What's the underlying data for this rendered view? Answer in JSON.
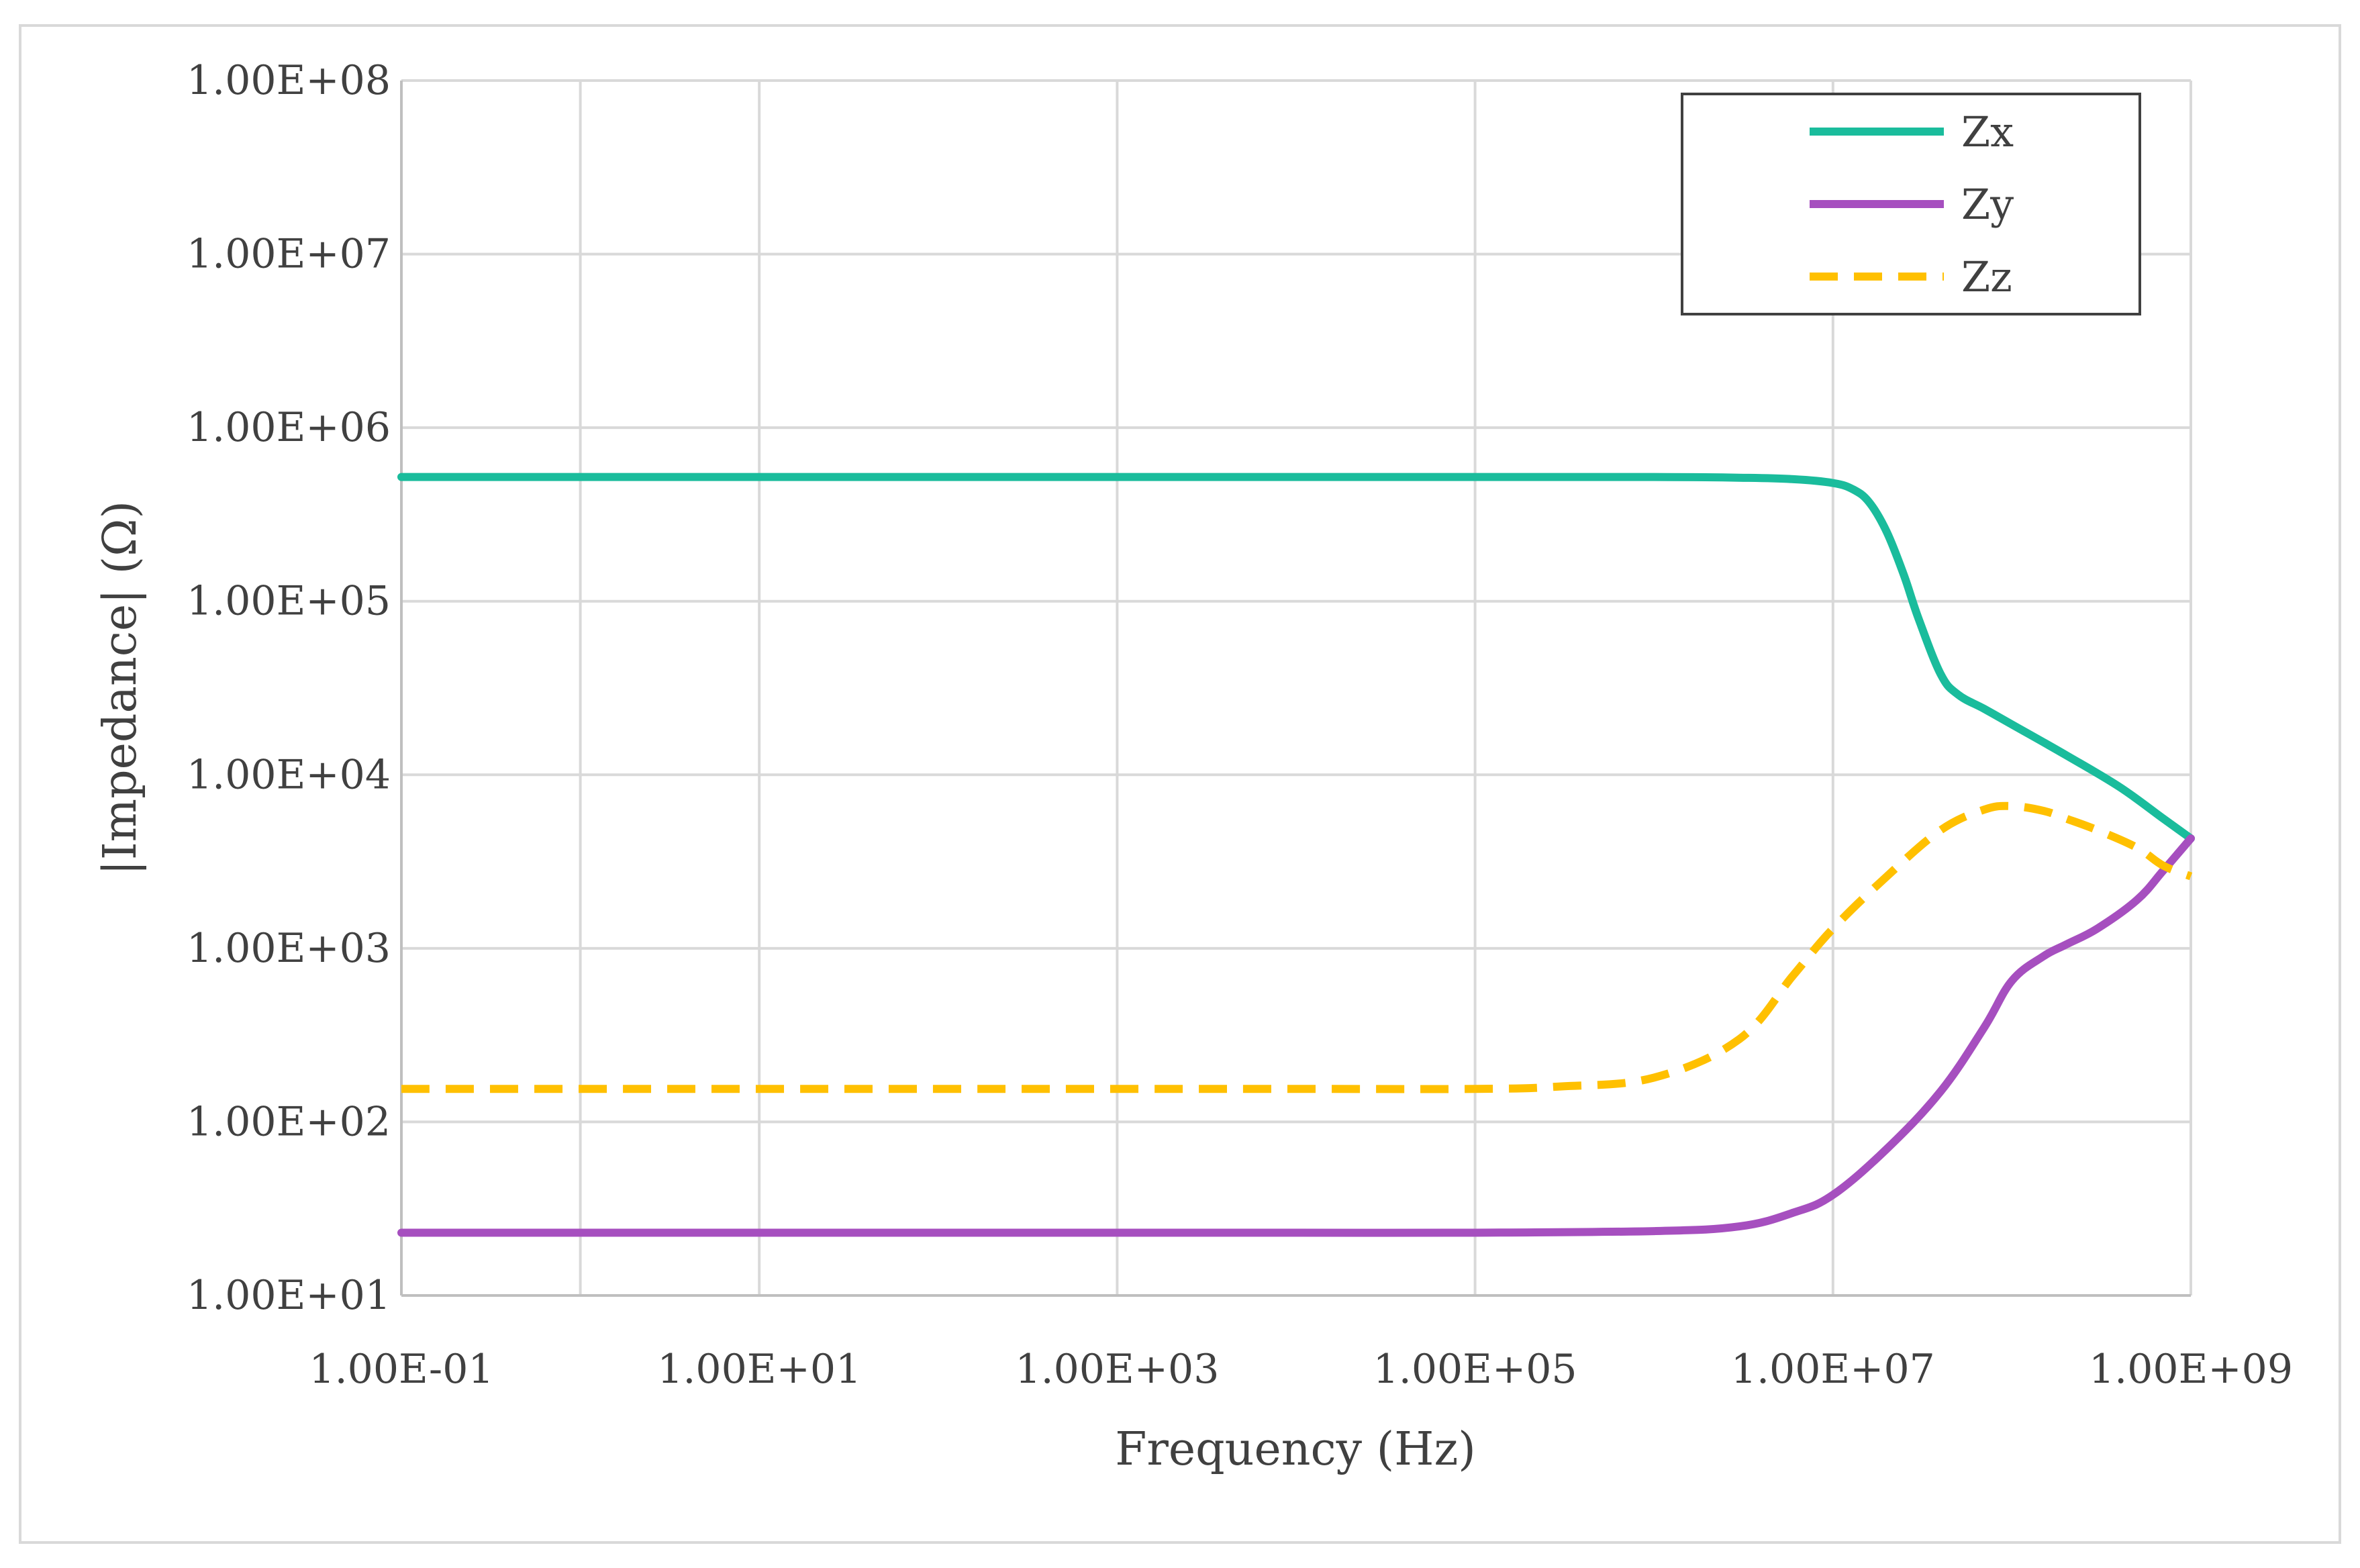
{
  "chart_data": {
    "type": "line",
    "title": "",
    "xlabel": "Frequency (Hz)",
    "ylabel": "|Impedance| (Ω)",
    "x_scale": "log",
    "y_scale": "log",
    "xlim": [
      0.1,
      1000000000
    ],
    "ylim": [
      10,
      100000000
    ],
    "x_ticks": [
      {
        "value": 0.1,
        "label": "1.00E-01"
      },
      {
        "value": 10,
        "label": "1.00E+01"
      },
      {
        "value": 1000,
        "label": "1.00E+03"
      },
      {
        "value": 100000,
        "label": "1.00E+05"
      },
      {
        "value": 10000000,
        "label": "1.00E+07"
      },
      {
        "value": 1000000000,
        "label": "1.00E+09"
      }
    ],
    "x_gridlines": [
      0.1,
      1,
      10,
      1000,
      100000,
      10000000,
      1000000000
    ],
    "y_ticks": [
      {
        "value": 10,
        "label": "1.00E+01"
      },
      {
        "value": 100,
        "label": "1.00E+02"
      },
      {
        "value": 1000,
        "label": "1.00E+03"
      },
      {
        "value": 10000,
        "label": "1.00E+04"
      },
      {
        "value": 100000,
        "label": "1.00E+05"
      },
      {
        "value": 1000000,
        "label": "1.00E+06"
      },
      {
        "value": 10000000,
        "label": "1.00E+07"
      },
      {
        "value": 100000000,
        "label": "1.00E+08"
      }
    ],
    "grid": true,
    "legend_position": "top-right",
    "series": [
      {
        "name": "Zx",
        "color": "#1abc9c",
        "dash": "solid",
        "x": [
          0.1,
          1,
          10,
          100,
          1000,
          10000,
          100000,
          1000000,
          3000000,
          6000000,
          10000000,
          13000000,
          16000000,
          20000000,
          25000000,
          30000000,
          40000000,
          50000000,
          70000000,
          100000000,
          200000000,
          400000000,
          700000000,
          1000000000
        ],
        "y": [
          520000,
          520000,
          520000,
          520000,
          520000,
          520000,
          520000,
          520000,
          515000,
          505000,
          480000,
          440000,
          370000,
          250000,
          140000,
          80000,
          38000,
          29000,
          24000,
          19500,
          13000,
          8500,
          5600,
          4300
        ]
      },
      {
        "name": "Zy",
        "color": "#a64fbf",
        "dash": "solid",
        "x": [
          0.1,
          1,
          10,
          100,
          1000,
          10000,
          100000,
          1000000,
          3000000,
          6000000,
          10000000,
          20000000,
          40000000,
          70000000,
          100000000,
          150000000,
          200000000,
          300000000,
          500000000,
          700000000,
          1000000000
        ],
        "y": [
          23,
          23,
          23,
          23,
          23,
          23,
          23,
          23.5,
          25,
          30,
          38,
          70,
          150,
          350,
          650,
          900,
          1050,
          1300,
          1900,
          2800,
          4300
        ]
      },
      {
        "name": "Zz",
        "color": "#ffc000",
        "dash": "dashed",
        "x": [
          0.1,
          1,
          10,
          100,
          1000,
          10000,
          100000,
          300000,
          1000000,
          3000000,
          6000000,
          10000000,
          20000000,
          40000000,
          70000000,
          100000000,
          150000000,
          200000000,
          300000000,
          500000000,
          700000000,
          1000000000
        ],
        "y": [
          155,
          155,
          155,
          155,
          155,
          155,
          155,
          160,
          180,
          300,
          700,
          1300,
          2600,
          4800,
          6300,
          6600,
          6200,
          5600,
          4800,
          3800,
          3000,
          2600
        ]
      }
    ]
  }
}
